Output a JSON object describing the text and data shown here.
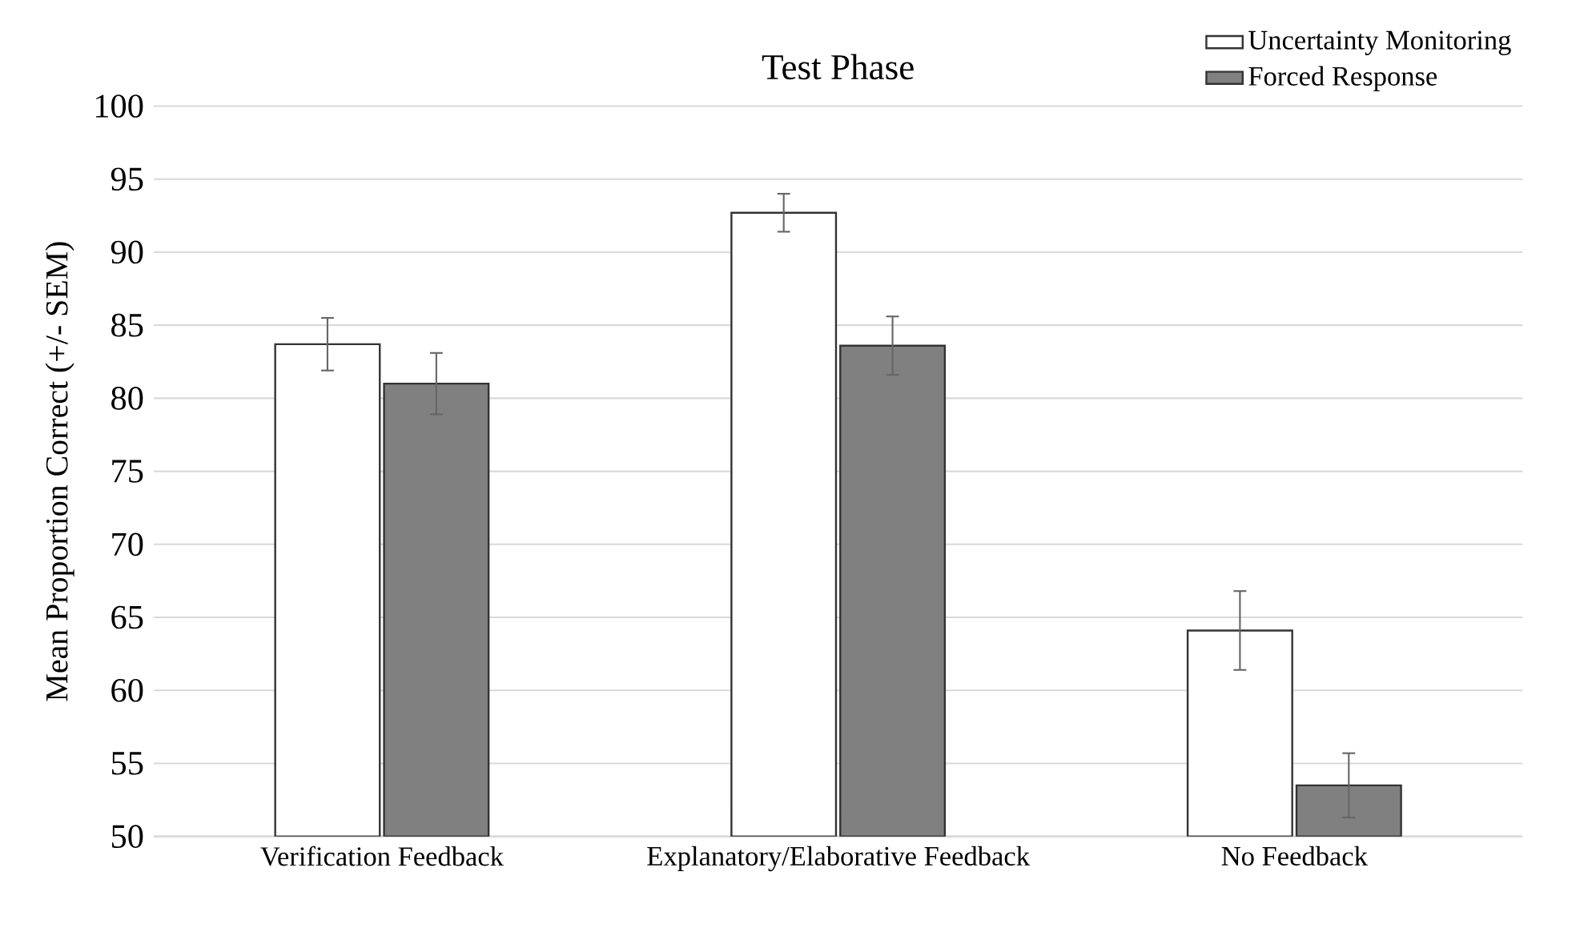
{
  "chart_data": {
    "type": "bar",
    "title": "Test Phase",
    "ylabel": "Mean Proportion Correct (+/- SEM)",
    "categories": [
      "Verification Feedback",
      "Explanatory/Elaborative Feedback",
      "No Feedback"
    ],
    "series": [
      {
        "name": "Uncertainty Monitoring",
        "color": "#ffffff",
        "values": [
          83.7,
          92.7,
          64.1
        ],
        "errors": [
          1.8,
          1.3,
          2.7
        ]
      },
      {
        "name": "Forced Response",
        "color": "#808080",
        "values": [
          81.0,
          83.6,
          53.5
        ],
        "errors": [
          2.1,
          2.0,
          2.2
        ]
      }
    ],
    "ylim": [
      50,
      100
    ],
    "yticks": [
      50,
      55,
      60,
      65,
      70,
      75,
      80,
      85,
      90,
      95,
      100
    ],
    "grid": "y",
    "legend": "top right"
  }
}
